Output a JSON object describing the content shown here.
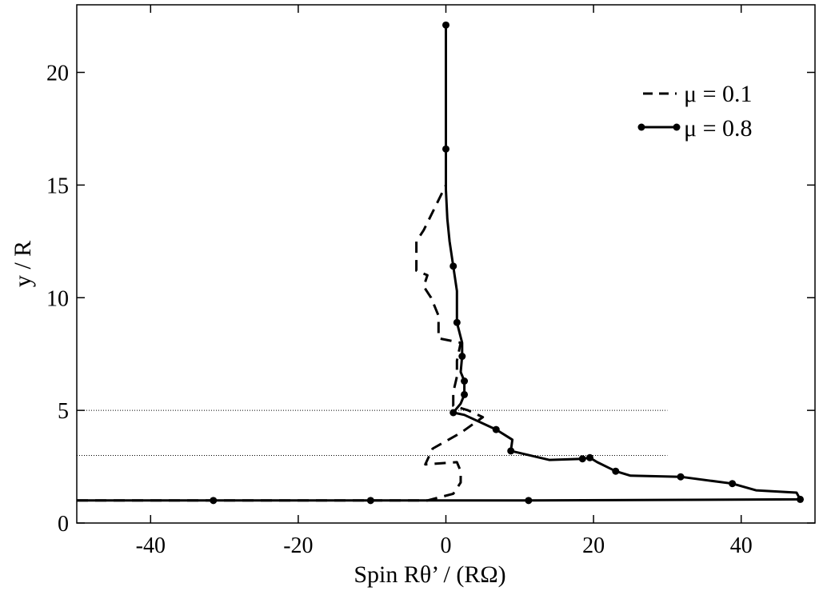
{
  "chart_data": {
    "type": "line",
    "xlabel": "Spin Rθ’ / (RΩ)",
    "ylabel": "y / R",
    "xlim": [
      -50,
      50
    ],
    "ylim": [
      0,
      23
    ],
    "xticks": [
      -40,
      -20,
      0,
      20,
      40
    ],
    "yticks": [
      0,
      5,
      10,
      15,
      20
    ],
    "legend_position": "top-right",
    "reference_lines": [
      {
        "y": 5,
        "x_range": [
          -50,
          30
        ],
        "style": "dotted"
      },
      {
        "y": 3,
        "x_range": [
          -50,
          30
        ],
        "style": "dotted"
      }
    ],
    "series": [
      {
        "name": "μ = 0.1",
        "style": "dashed",
        "markers": false,
        "color": "#000000",
        "points": [
          [
            -50,
            1.0
          ],
          [
            -2.5,
            1.0
          ],
          [
            1.0,
            1.3
          ],
          [
            2.0,
            1.8
          ],
          [
            2.0,
            2.3
          ],
          [
            1.5,
            2.7
          ],
          [
            -2.8,
            2.6
          ],
          [
            -1.8,
            3.3
          ],
          [
            2.0,
            4.0
          ],
          [
            5.0,
            4.7
          ],
          [
            3.0,
            5.0
          ],
          [
            1.0,
            5.2
          ],
          [
            1.0,
            5.8
          ],
          [
            1.5,
            6.5
          ],
          [
            1.5,
            7.2
          ],
          [
            2.0,
            8.0
          ],
          [
            -1.0,
            8.2
          ],
          [
            -1.0,
            9.2
          ],
          [
            -2.0,
            10.0
          ],
          [
            -3.0,
            10.5
          ],
          [
            -2.5,
            11.0
          ],
          [
            -4.0,
            11.2
          ],
          [
            -4.0,
            12.0
          ],
          [
            -4.0,
            12.5
          ],
          [
            -3.0,
            13.0
          ],
          [
            -1.5,
            14.0
          ],
          [
            0.0,
            15.0
          ]
        ]
      },
      {
        "name": "μ = 0.8",
        "style": "solid",
        "markers": true,
        "color": "#000000",
        "points": [
          [
            -50,
            1.0
          ],
          [
            -31.5,
            1.0
          ],
          [
            -10.2,
            1.0
          ],
          [
            11.2,
            1.0
          ],
          [
            48.0,
            1.05
          ],
          [
            47.5,
            1.35
          ],
          [
            42.0,
            1.45
          ],
          [
            38.8,
            1.75
          ],
          [
            31.8,
            2.05
          ],
          [
            25.0,
            2.1
          ],
          [
            23.0,
            2.3
          ],
          [
            20.5,
            2.7
          ],
          [
            19.5,
            2.9
          ],
          [
            18.5,
            2.85
          ],
          [
            14.0,
            2.8
          ],
          [
            8.8,
            3.2
          ],
          [
            9.0,
            3.7
          ],
          [
            6.8,
            4.15
          ],
          [
            2.5,
            4.8
          ],
          [
            1.0,
            4.9
          ],
          [
            2.0,
            5.3
          ],
          [
            2.5,
            5.7
          ],
          [
            2.5,
            6.3
          ],
          [
            2.0,
            6.7
          ],
          [
            2.2,
            7.4
          ],
          [
            2.2,
            8.0
          ],
          [
            1.5,
            8.9
          ],
          [
            1.5,
            9.5
          ],
          [
            1.5,
            10.3
          ],
          [
            1.0,
            11.4
          ],
          [
            0.5,
            12.5
          ],
          [
            0.2,
            13.5
          ],
          [
            0.0,
            14.8
          ],
          [
            0.0,
            16.6
          ],
          [
            0.0,
            22.1
          ]
        ],
        "marker_points": [
          [
            -31.5,
            1.0
          ],
          [
            -10.2,
            1.0
          ],
          [
            11.2,
            1.0
          ],
          [
            48.0,
            1.05
          ],
          [
            38.8,
            1.75
          ],
          [
            31.8,
            2.05
          ],
          [
            23.0,
            2.3
          ],
          [
            19.5,
            2.9
          ],
          [
            18.5,
            2.85
          ],
          [
            8.8,
            3.2
          ],
          [
            6.8,
            4.15
          ],
          [
            1.0,
            4.9
          ],
          [
            2.5,
            5.7
          ],
          [
            2.5,
            6.3
          ],
          [
            2.2,
            7.4
          ],
          [
            1.5,
            8.9
          ],
          [
            1.0,
            11.4
          ],
          [
            0.0,
            16.6
          ],
          [
            0.0,
            22.1
          ]
        ]
      }
    ]
  }
}
